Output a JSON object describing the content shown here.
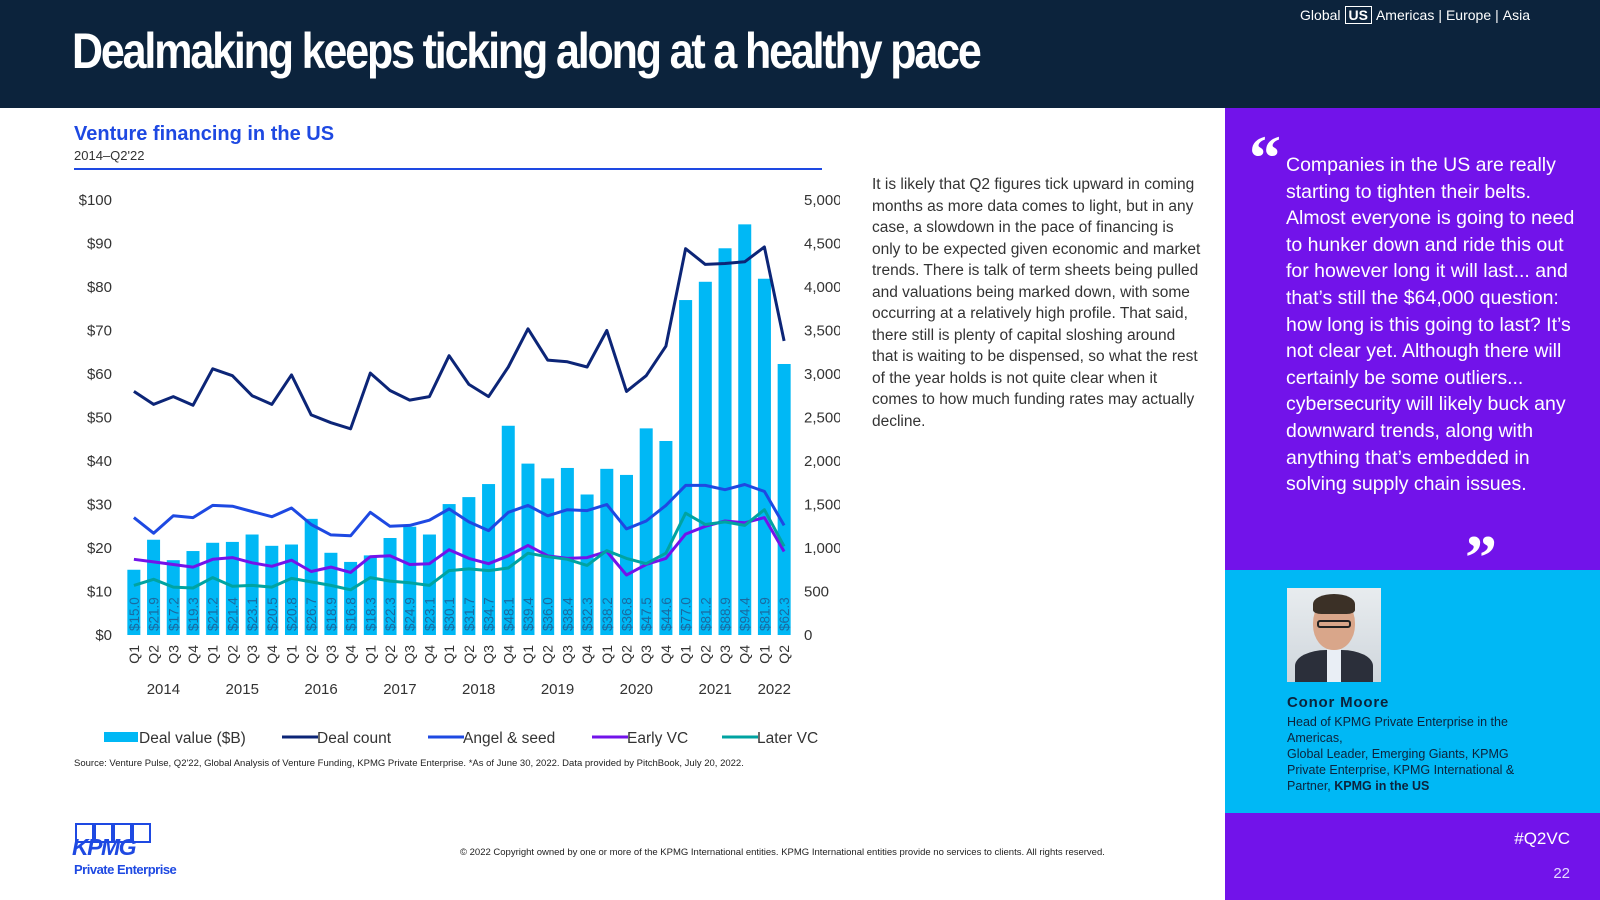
{
  "header": {
    "title": "Dealmaking keeps ticking along at a healthy pace",
    "nav": [
      "Global",
      "US",
      "Americas",
      "|",
      "Europe",
      "|",
      "Asia"
    ],
    "nav_active": "US"
  },
  "chart_header": {
    "title": "Venture financing in the US",
    "subtitle": "2014–Q2'22"
  },
  "chart_data": {
    "type": "bar",
    "categories": [
      "Q1",
      "Q2",
      "Q3",
      "Q4",
      "Q1",
      "Q2",
      "Q3",
      "Q4",
      "Q1",
      "Q2",
      "Q3",
      "Q4",
      "Q1",
      "Q2",
      "Q3",
      "Q4",
      "Q1",
      "Q2",
      "Q3",
      "Q4",
      "Q1",
      "Q2",
      "Q3",
      "Q4",
      "Q1",
      "Q2",
      "Q3",
      "Q4",
      "Q1",
      "Q2",
      "Q3",
      "Q4",
      "Q1",
      "Q2"
    ],
    "years": [
      {
        "label": "2014",
        "start": 0,
        "end": 3
      },
      {
        "label": "2015",
        "start": 4,
        "end": 7
      },
      {
        "label": "2016",
        "start": 8,
        "end": 11
      },
      {
        "label": "2017",
        "start": 12,
        "end": 15
      },
      {
        "label": "2018",
        "start": 16,
        "end": 19
      },
      {
        "label": "2019",
        "start": 20,
        "end": 23
      },
      {
        "label": "2020",
        "start": 24,
        "end": 27
      },
      {
        "label": "2021",
        "start": 28,
        "end": 31
      },
      {
        "label": "2022",
        "start": 32,
        "end": 33
      }
    ],
    "series": [
      {
        "name": "Deal value ($B)",
        "type": "bar",
        "axis": "left",
        "color": "#00b8f5",
        "values": [
          15.0,
          21.9,
          17.2,
          19.3,
          21.2,
          21.4,
          23.1,
          20.5,
          20.8,
          26.7,
          18.9,
          16.8,
          18.3,
          22.3,
          24.9,
          23.1,
          30.1,
          31.7,
          34.7,
          48.1,
          39.4,
          36.0,
          38.4,
          32.3,
          38.2,
          36.8,
          47.5,
          44.6,
          77.0,
          81.2,
          88.9,
          94.4,
          81.9,
          62.3
        ],
        "labels": [
          "$15.0",
          "$21.9",
          "$17.2",
          "$19.3",
          "$21.2",
          "$21.4",
          "$23.1",
          "$20.5",
          "$20.8",
          "$26.7",
          "$18.9",
          "$16.8",
          "$18.3",
          "$22.3",
          "$24.9",
          "$23.1",
          "$30.1",
          "$31.7",
          "$34.7",
          "$48.1",
          "$39.4",
          "$36.0",
          "$38.4",
          "$32.3",
          "$38.2",
          "$36.8",
          "$47.5",
          "$44.6",
          "$77.0",
          "$81.2",
          "$88.9",
          "$94.4",
          "$81.9",
          "$62.3"
        ]
      },
      {
        "name": "Deal count",
        "type": "line",
        "axis": "right",
        "color": "#0c2577",
        "values": [
          2800,
          2650,
          2740,
          2640,
          3060,
          2980,
          2750,
          2650,
          2990,
          2530,
          2440,
          2370,
          3010,
          2810,
          2700,
          2740,
          3210,
          2880,
          2740,
          3080,
          3520,
          3160,
          3140,
          3080,
          3500,
          2800,
          2980,
          3320,
          4440,
          4260,
          4270,
          4290,
          4460,
          3380
        ]
      },
      {
        "name": "Angel & seed",
        "type": "line",
        "axis": "right",
        "color": "#1e49e2",
        "values": [
          1350,
          1170,
          1370,
          1350,
          1490,
          1480,
          1420,
          1360,
          1460,
          1270,
          1150,
          1140,
          1410,
          1250,
          1260,
          1320,
          1450,
          1300,
          1200,
          1410,
          1490,
          1370,
          1440,
          1430,
          1500,
          1220,
          1310,
          1490,
          1720,
          1720,
          1670,
          1730,
          1650,
          1260
        ]
      },
      {
        "name": "Early VC",
        "type": "line",
        "axis": "right",
        "color": "#7213ea",
        "values": [
          870,
          840,
          810,
          780,
          870,
          890,
          830,
          790,
          860,
          730,
          780,
          720,
          900,
          910,
          810,
          820,
          980,
          880,
          820,
          910,
          1030,
          910,
          880,
          890,
          960,
          690,
          810,
          880,
          1160,
          1250,
          1310,
          1290,
          1350,
          960
        ]
      },
      {
        "name": "Later VC",
        "type": "line",
        "axis": "right",
        "color": "#00a3a1",
        "values": [
          570,
          640,
          550,
          540,
          660,
          560,
          570,
          550,
          650,
          610,
          570,
          520,
          660,
          620,
          600,
          570,
          740,
          760,
          740,
          770,
          940,
          900,
          870,
          800,
          970,
          880,
          820,
          940,
          1400,
          1270,
          1300,
          1260,
          1440,
          1020
        ]
      }
    ],
    "left_axis": {
      "ylim": [
        0,
        100
      ],
      "ticks": [
        "$0",
        "$10",
        "$20",
        "$30",
        "$40",
        "$50",
        "$60",
        "$70",
        "$80",
        "$90",
        "$100"
      ]
    },
    "right_axis": {
      "ylim": [
        0,
        5000
      ],
      "ticks": [
        "0",
        "500",
        "1,000",
        "1,500",
        "2,000",
        "2,500",
        "3,000",
        "3,500",
        "4,000",
        "4,500",
        "5,000"
      ]
    },
    "legend_position": "bottom",
    "grid": false
  },
  "source": "Source: Venture Pulse, Q2'22, Global Analysis of Venture Funding, KPMG Private Enterprise. *As of June 30, 2022. Data provided by PitchBook, July 20, 2022.",
  "body_text": "It is likely that Q2 figures tick upward in coming months as more data comes to light, but in any case, a slowdown in the pace of financing is only to be expected given economic and market trends. There is talk of term sheets being pulled and valuations being marked down, with some occurring at a relatively high profile. That said, there still is plenty of capital sloshing around that is waiting to be dispensed, so what the rest of the year holds is not quite clear when it comes to how much funding rates may actually decline.",
  "quote": {
    "text": "Companies in the US are really starting to tighten their belts. Almost everyone is going to need to hunker down and ride this out for however long it will last... and that’s still the $64,000 question: how long is this going to last? It’s not clear yet. Although there will certainly be some outliers... cybersecurity will likely buck any downward trends, along with anything that’s embedded in solving supply chain issues.",
    "open_mark": "“",
    "close_mark": "”"
  },
  "person": {
    "name": "Conor Moore",
    "role_line1": "Head of KPMG Private Enterprise in the Americas,",
    "role_line2": "Global Leader, Emerging Giants, KPMG Private Enterprise, KPMG International & Partner, ",
    "role_bold": "KPMG in the US"
  },
  "footer": {
    "hashtag": "#Q2VC",
    "page_number": "22",
    "logo_text": "KPMG",
    "logo_sub": "Private Enterprise",
    "copyright": "© 2022 Copyright owned by one or more of the KPMG International entities. KPMG International entities provide no services to clients. All rights reserved."
  }
}
